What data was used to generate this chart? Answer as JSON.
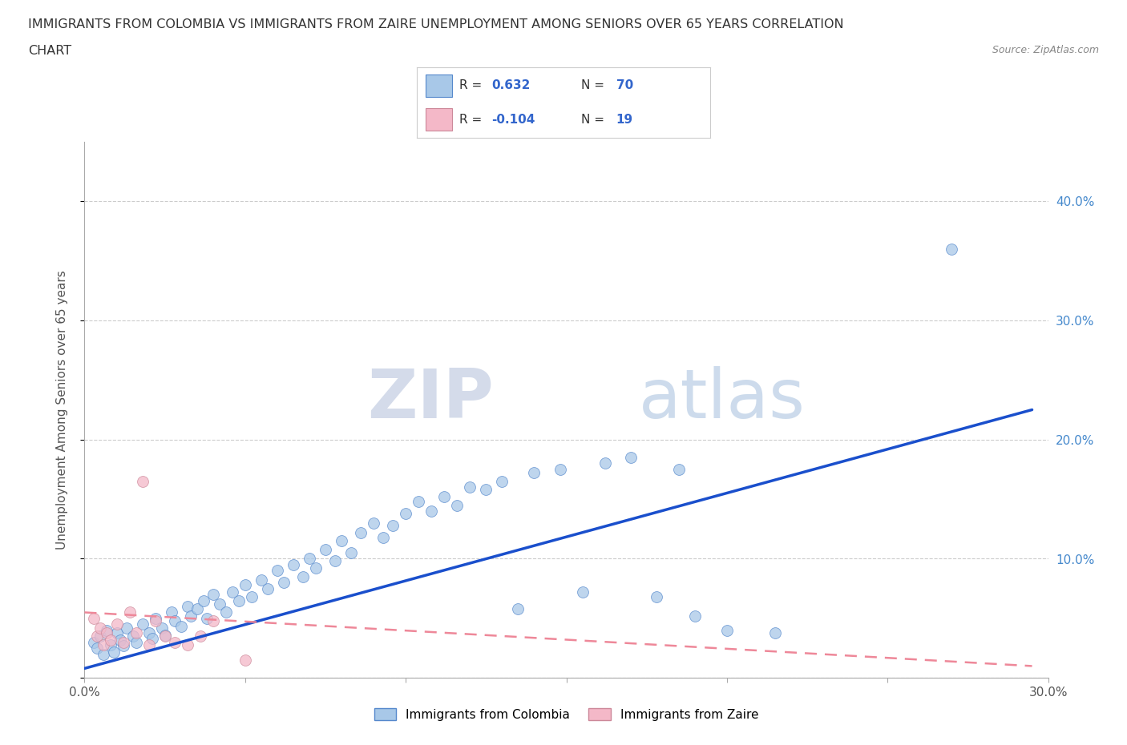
{
  "title_line1": "IMMIGRANTS FROM COLOMBIA VS IMMIGRANTS FROM ZAIRE UNEMPLOYMENT AMONG SENIORS OVER 65 YEARS CORRELATION",
  "title_line2": "CHART",
  "source": "Source: ZipAtlas.com",
  "xlabel": "Immigrants from Colombia",
  "ylabel": "Unemployment Among Seniors over 65 years",
  "xlim": [
    0.0,
    0.3
  ],
  "ylim": [
    0.0,
    0.45
  ],
  "x_ticks": [
    0.0,
    0.05,
    0.1,
    0.15,
    0.2,
    0.25,
    0.3
  ],
  "y_ticks": [
    0.0,
    0.1,
    0.2,
    0.3,
    0.4
  ],
  "y_tick_labels_right": [
    "",
    "10.0%",
    "20.0%",
    "30.0%",
    "40.0%"
  ],
  "colombia_color": "#a8c8e8",
  "colombia_edge": "#5588cc",
  "zaire_color": "#f4b8c8",
  "zaire_edge": "#cc8899",
  "colombia_line_color": "#1a4fcc",
  "zaire_line_color": "#ee8899",
  "R_colombia": 0.632,
  "N_colombia": 70,
  "R_zaire": -0.104,
  "N_zaire": 19,
  "watermark_zip": "ZIP",
  "watermark_atlas": "atlas",
  "colombia_scatter_x": [
    0.003,
    0.004,
    0.005,
    0.006,
    0.007,
    0.008,
    0.009,
    0.01,
    0.011,
    0.012,
    0.013,
    0.015,
    0.016,
    0.018,
    0.02,
    0.021,
    0.022,
    0.024,
    0.025,
    0.027,
    0.028,
    0.03,
    0.032,
    0.033,
    0.035,
    0.037,
    0.038,
    0.04,
    0.042,
    0.044,
    0.046,
    0.048,
    0.05,
    0.052,
    0.055,
    0.057,
    0.06,
    0.062,
    0.065,
    0.068,
    0.07,
    0.072,
    0.075,
    0.078,
    0.08,
    0.083,
    0.086,
    0.09,
    0.093,
    0.096,
    0.1,
    0.104,
    0.108,
    0.112,
    0.116,
    0.12,
    0.125,
    0.13,
    0.135,
    0.14,
    0.148,
    0.155,
    0.162,
    0.17,
    0.178,
    0.185,
    0.19,
    0.2,
    0.215,
    0.27
  ],
  "colombia_scatter_y": [
    0.03,
    0.025,
    0.035,
    0.02,
    0.04,
    0.028,
    0.022,
    0.038,
    0.032,
    0.027,
    0.042,
    0.035,
    0.03,
    0.045,
    0.038,
    0.033,
    0.05,
    0.042,
    0.036,
    0.055,
    0.048,
    0.043,
    0.06,
    0.052,
    0.058,
    0.065,
    0.05,
    0.07,
    0.062,
    0.055,
    0.072,
    0.065,
    0.078,
    0.068,
    0.082,
    0.075,
    0.09,
    0.08,
    0.095,
    0.085,
    0.1,
    0.092,
    0.108,
    0.098,
    0.115,
    0.105,
    0.122,
    0.13,
    0.118,
    0.128,
    0.138,
    0.148,
    0.14,
    0.152,
    0.145,
    0.16,
    0.158,
    0.165,
    0.058,
    0.172,
    0.175,
    0.072,
    0.18,
    0.185,
    0.068,
    0.175,
    0.052,
    0.04,
    0.038,
    0.36
  ],
  "zaire_scatter_x": [
    0.003,
    0.004,
    0.005,
    0.006,
    0.007,
    0.008,
    0.01,
    0.012,
    0.014,
    0.016,
    0.018,
    0.02,
    0.022,
    0.025,
    0.028,
    0.032,
    0.036,
    0.04,
    0.05
  ],
  "zaire_scatter_y": [
    0.05,
    0.035,
    0.042,
    0.028,
    0.038,
    0.032,
    0.045,
    0.03,
    0.055,
    0.038,
    0.165,
    0.028,
    0.048,
    0.035,
    0.03,
    0.028,
    0.035,
    0.048,
    0.015
  ],
  "colombia_line_x": [
    0.0,
    0.295
  ],
  "colombia_line_y": [
    0.008,
    0.225
  ],
  "zaire_line_x": [
    0.0,
    0.295
  ],
  "zaire_line_y": [
    0.055,
    0.01
  ]
}
